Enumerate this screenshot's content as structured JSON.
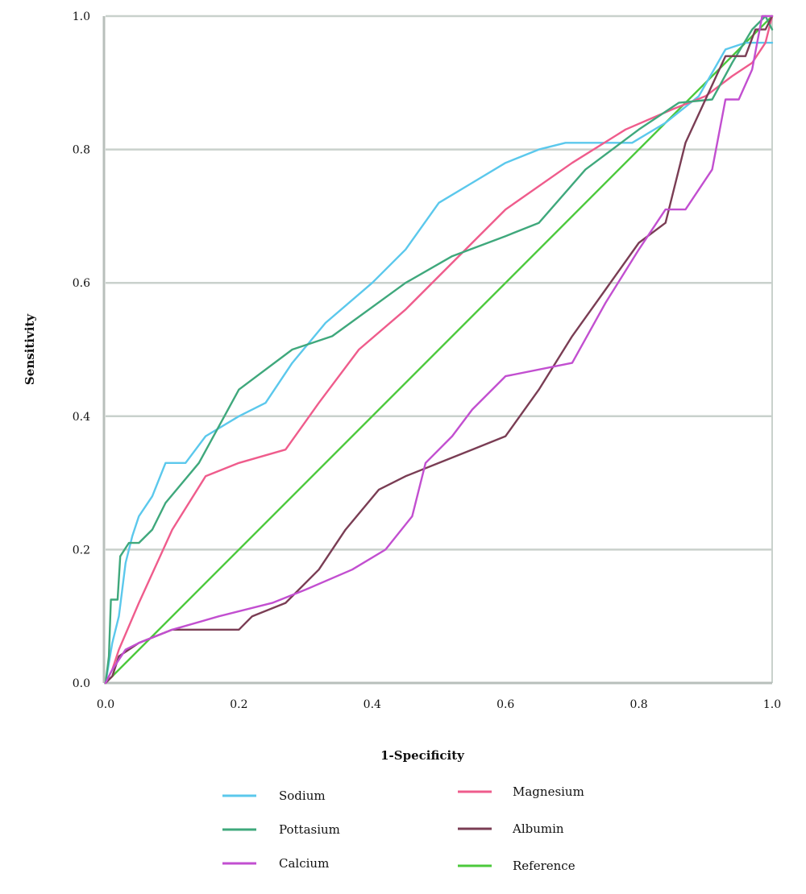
{
  "chart_data": {
    "type": "line",
    "xlabel": "1-Specificity",
    "ylabel": "Sensitivity",
    "xlim": [
      0,
      1
    ],
    "ylim": [
      0,
      1
    ],
    "xticks": [
      "0.0",
      "0.2",
      "0.4",
      "0.6",
      "0.8",
      "1.0"
    ],
    "yticks": [
      "0.0",
      "0.2",
      "0.4",
      "0.6",
      "0.8",
      "1.0"
    ],
    "grid": "horizontal",
    "legend_position": "bottom",
    "series": [
      {
        "name": "Sodium",
        "color": "#5bc8ec",
        "points": [
          [
            0,
            0
          ],
          [
            0.005,
            0.03
          ],
          [
            0.01,
            0.06
          ],
          [
            0.02,
            0.1
          ],
          [
            0.03,
            0.18
          ],
          [
            0.04,
            0.22
          ],
          [
            0.05,
            0.25
          ],
          [
            0.07,
            0.28
          ],
          [
            0.09,
            0.33
          ],
          [
            0.12,
            0.33
          ],
          [
            0.15,
            0.37
          ],
          [
            0.2,
            0.4
          ],
          [
            0.24,
            0.42
          ],
          [
            0.28,
            0.48
          ],
          [
            0.33,
            0.54
          ],
          [
            0.4,
            0.6
          ],
          [
            0.45,
            0.65
          ],
          [
            0.5,
            0.72
          ],
          [
            0.55,
            0.75
          ],
          [
            0.6,
            0.78
          ],
          [
            0.65,
            0.8
          ],
          [
            0.69,
            0.81
          ],
          [
            0.79,
            0.81
          ],
          [
            0.84,
            0.84
          ],
          [
            0.89,
            0.88
          ],
          [
            0.93,
            0.95
          ],
          [
            0.96,
            0.96
          ],
          [
            0.98,
            0.96
          ],
          [
            1.0,
            0.96
          ]
        ]
      },
      {
        "name": "Magnesium",
        "color": "#ef5c8c",
        "points": [
          [
            0,
            0
          ],
          [
            0.01,
            0.02
          ],
          [
            0.02,
            0.05
          ],
          [
            0.05,
            0.12
          ],
          [
            0.1,
            0.23
          ],
          [
            0.15,
            0.31
          ],
          [
            0.2,
            0.33
          ],
          [
            0.27,
            0.35
          ],
          [
            0.32,
            0.42
          ],
          [
            0.38,
            0.5
          ],
          [
            0.45,
            0.56
          ],
          [
            0.52,
            0.63
          ],
          [
            0.6,
            0.71
          ],
          [
            0.7,
            0.78
          ],
          [
            0.78,
            0.83
          ],
          [
            0.85,
            0.86
          ],
          [
            0.9,
            0.88
          ],
          [
            0.94,
            0.91
          ],
          [
            0.97,
            0.93
          ],
          [
            0.99,
            0.96
          ],
          [
            1.0,
            1.0
          ]
        ]
      },
      {
        "name": "Pottasium",
        "color": "#3fa87c",
        "points": [
          [
            0,
            0
          ],
          [
            0.005,
            0.04
          ],
          [
            0.008,
            0.125
          ],
          [
            0.018,
            0.125
          ],
          [
            0.022,
            0.19
          ],
          [
            0.035,
            0.21
          ],
          [
            0.05,
            0.21
          ],
          [
            0.07,
            0.23
          ],
          [
            0.09,
            0.27
          ],
          [
            0.14,
            0.33
          ],
          [
            0.2,
            0.44
          ],
          [
            0.28,
            0.5
          ],
          [
            0.34,
            0.52
          ],
          [
            0.45,
            0.6
          ],
          [
            0.52,
            0.64
          ],
          [
            0.6,
            0.67
          ],
          [
            0.65,
            0.69
          ],
          [
            0.72,
            0.77
          ],
          [
            0.8,
            0.83
          ],
          [
            0.86,
            0.87
          ],
          [
            0.91,
            0.875
          ],
          [
            0.94,
            0.93
          ],
          [
            0.97,
            0.98
          ],
          [
            0.99,
            1.0
          ],
          [
            1.0,
            0.98
          ]
        ]
      },
      {
        "name": "Albumin",
        "color": "#7a3d54",
        "points": [
          [
            0,
            0
          ],
          [
            0.01,
            0.01
          ],
          [
            0.02,
            0.04
          ],
          [
            0.05,
            0.06
          ],
          [
            0.1,
            0.08
          ],
          [
            0.2,
            0.08
          ],
          [
            0.22,
            0.1
          ],
          [
            0.27,
            0.12
          ],
          [
            0.32,
            0.17
          ],
          [
            0.36,
            0.23
          ],
          [
            0.41,
            0.29
          ],
          [
            0.45,
            0.31
          ],
          [
            0.5,
            0.33
          ],
          [
            0.55,
            0.35
          ],
          [
            0.6,
            0.37
          ],
          [
            0.65,
            0.44
          ],
          [
            0.7,
            0.52
          ],
          [
            0.75,
            0.59
          ],
          [
            0.8,
            0.66
          ],
          [
            0.84,
            0.69
          ],
          [
            0.87,
            0.81
          ],
          [
            0.9,
            0.875
          ],
          [
            0.93,
            0.94
          ],
          [
            0.96,
            0.94
          ],
          [
            0.975,
            0.98
          ],
          [
            0.99,
            0.98
          ],
          [
            1.0,
            1.0
          ]
        ]
      },
      {
        "name": "Calcium",
        "color": "#c24fd0",
        "points": [
          [
            0,
            0
          ],
          [
            0.01,
            0.02
          ],
          [
            0.03,
            0.05
          ],
          [
            0.05,
            0.06
          ],
          [
            0.1,
            0.08
          ],
          [
            0.17,
            0.1
          ],
          [
            0.25,
            0.12
          ],
          [
            0.3,
            0.14
          ],
          [
            0.37,
            0.17
          ],
          [
            0.42,
            0.2
          ],
          [
            0.46,
            0.25
          ],
          [
            0.48,
            0.33
          ],
          [
            0.52,
            0.37
          ],
          [
            0.55,
            0.41
          ],
          [
            0.6,
            0.46
          ],
          [
            0.7,
            0.48
          ],
          [
            0.75,
            0.57
          ],
          [
            0.8,
            0.65
          ],
          [
            0.84,
            0.71
          ],
          [
            0.87,
            0.71
          ],
          [
            0.91,
            0.77
          ],
          [
            0.93,
            0.875
          ],
          [
            0.95,
            0.875
          ],
          [
            0.97,
            0.92
          ],
          [
            0.985,
            1.0
          ],
          [
            1.0,
            1.0
          ]
        ]
      },
      {
        "name": "Reference",
        "color": "#4cc93c",
        "points": [
          [
            0,
            0
          ],
          [
            1,
            1
          ]
        ]
      }
    ]
  }
}
